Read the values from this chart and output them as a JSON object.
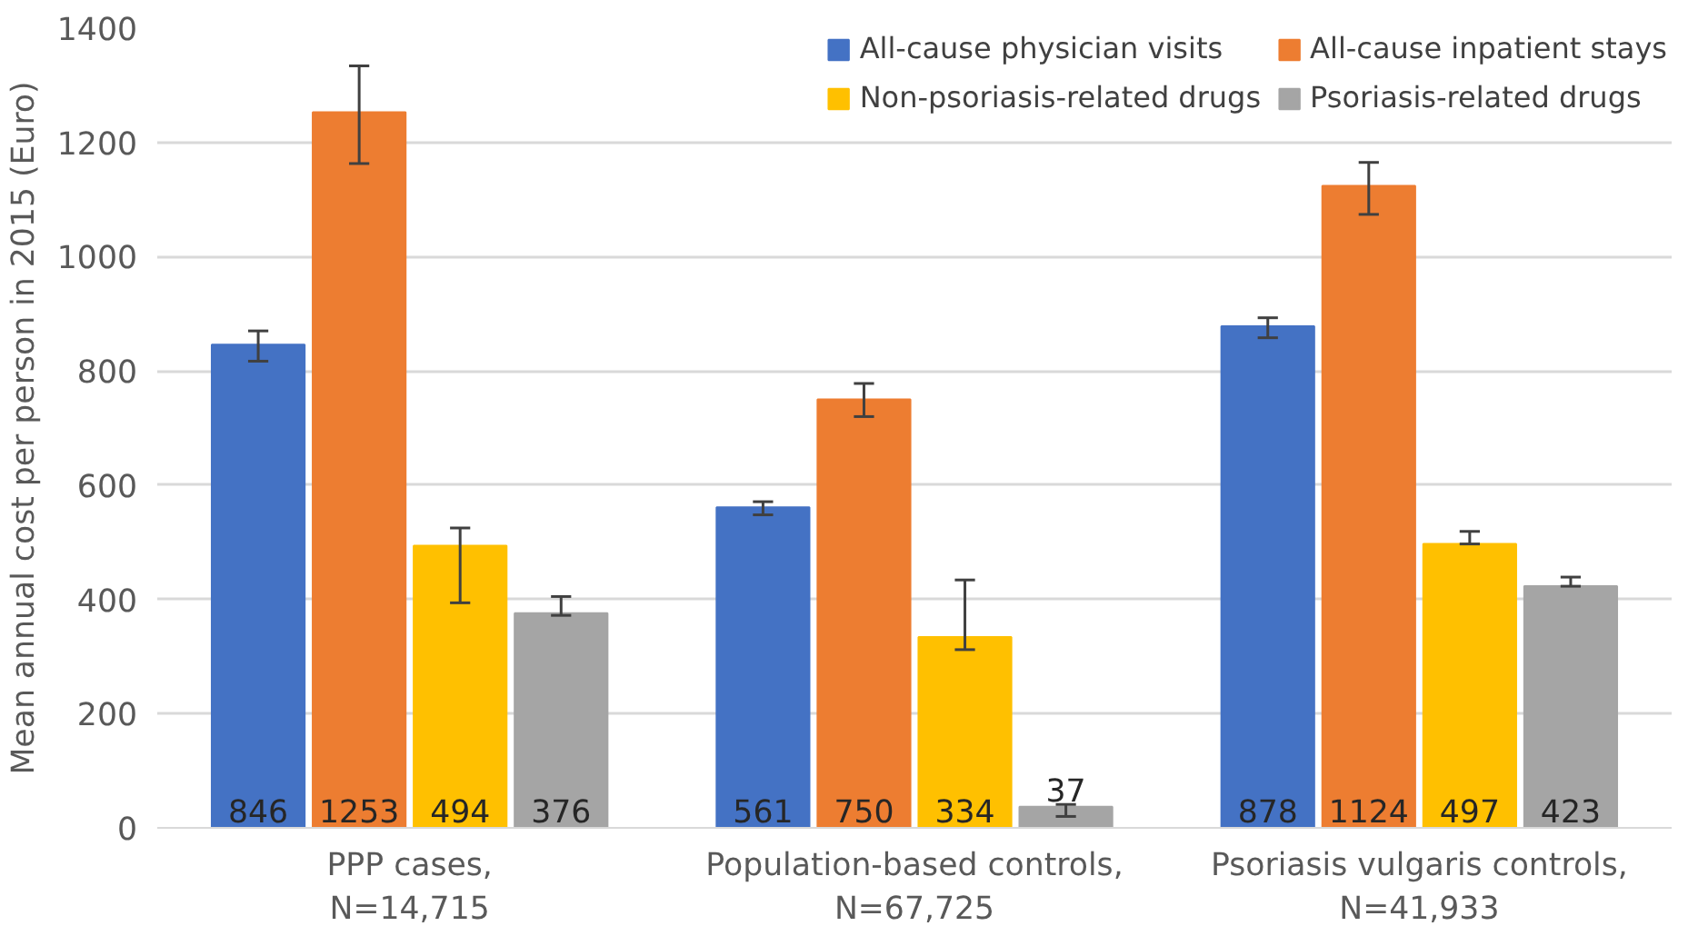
{
  "chart_data": {
    "type": "bar",
    "ylabel": "Mean annual cost per person in 2015 (Euro)",
    "categories": [
      "PPP cases,\nN=14,715",
      "Population-based controls,\nN=67,725",
      "Psoriasis vulgaris controls,\nN=41,933"
    ],
    "series": [
      {
        "name": "All-cause physician visits",
        "color": "#4472c4",
        "values": [
          846,
          561,
          878
        ],
        "errors": [
          [
            817,
            870
          ],
          [
            548,
            571
          ],
          [
            858,
            893
          ]
        ]
      },
      {
        "name": "All-cause inpatient stays",
        "color": "#ed7d31",
        "values": [
          1253,
          750,
          1124
        ],
        "errors": [
          [
            1163,
            1334
          ],
          [
            720,
            778
          ],
          [
            1074,
            1165
          ]
        ]
      },
      {
        "name": "Non-psoriasis-related drugs",
        "color": "#ffc000",
        "values": [
          494,
          334,
          497
        ],
        "errors": [
          [
            394,
            525
          ],
          [
            312,
            434
          ],
          [
            497,
            519
          ]
        ]
      },
      {
        "name": "Psoriasis-related drugs",
        "color": "#a5a5a5",
        "values": [
          376,
          37,
          423
        ],
        "errors": [
          [
            372,
            405
          ],
          [
            20,
            41
          ],
          [
            423,
            439
          ]
        ]
      }
    ],
    "ylim": [
      0,
      1400
    ],
    "yticks": [
      0,
      200,
      400,
      600,
      800,
      1000,
      1200,
      1400
    ],
    "grid": "y",
    "legend": "top right",
    "data_labels": true
  }
}
